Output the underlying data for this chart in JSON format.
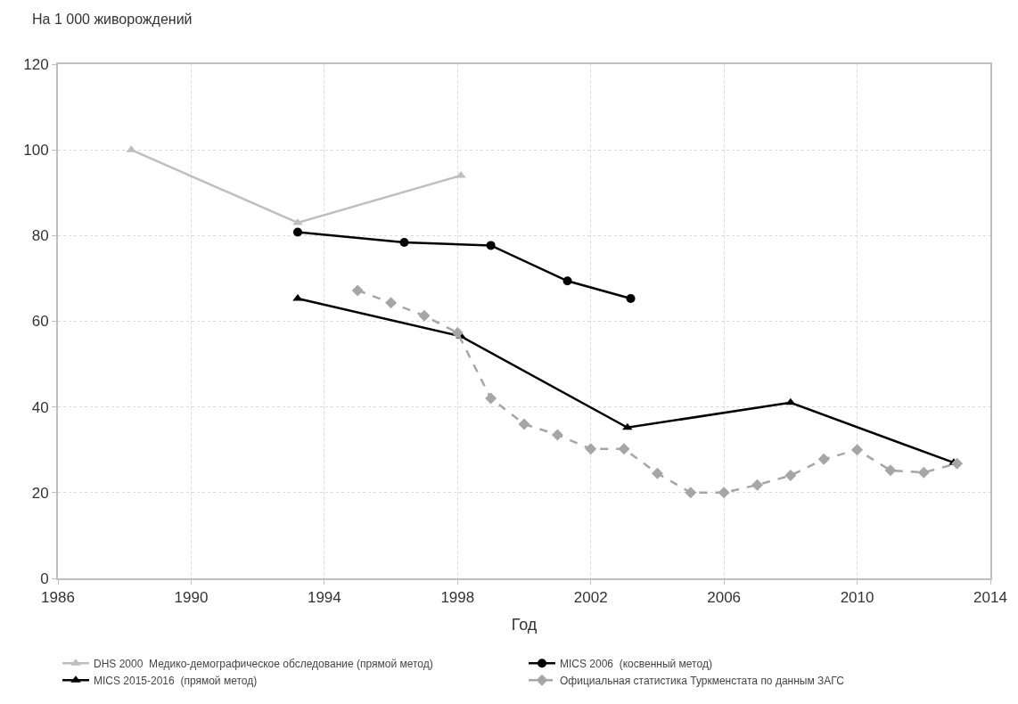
{
  "chart_data": {
    "type": "line",
    "ylabel": "На 1 000 живорождений",
    "xlabel": "Год",
    "xlim": [
      1986,
      2014
    ],
    "xticks": [
      1986,
      1990,
      1994,
      1998,
      2002,
      2006,
      2010,
      2014
    ],
    "ylim": [
      0,
      120
    ],
    "yticks": [
      0,
      20,
      40,
      60,
      80,
      100,
      120
    ],
    "grid": true,
    "legend": "bottom",
    "series": [
      {
        "name": "DHS 2000  Медико-демографическое обследование (прямой метод)",
        "color": "#bfbfbf",
        "marker": "triangle",
        "line_style": "solid",
        "x": [
          1988.2,
          1993.2,
          1998.1
        ],
        "values": [
          100,
          83,
          94
        ]
      },
      {
        "name": "MICS 2006  (косвенный метод)",
        "color": "#000000",
        "marker": "circle",
        "line_style": "solid",
        "x": [
          1993.2,
          1996.4,
          1999.0,
          2001.3,
          2003.2
        ],
        "values": [
          80.8,
          78.4,
          77.7,
          69.4,
          65.3
        ]
      },
      {
        "name": "MICS 2015-2016  (прямой метод)",
        "color": "#000000",
        "marker": "triangle",
        "line_style": "solid",
        "x": [
          1993.2,
          1998.1,
          2003.1,
          2008.0,
          2012.9
        ],
        "values": [
          65.3,
          56.5,
          35.2,
          41,
          27
        ]
      },
      {
        "name": "Официальная статистика Туркменстата по данным ЗАГС",
        "color": "#a6a6a6",
        "marker": "diamond",
        "line_style": "dashed",
        "x": [
          1995,
          1996,
          1997,
          1998,
          1999,
          2000,
          2001,
          2002,
          2003,
          2004,
          2005,
          2006,
          2007,
          2008,
          2009,
          2010,
          2011,
          2012,
          2013
        ],
        "values": [
          67.2,
          64.3,
          61.3,
          57.3,
          42,
          36,
          33.5,
          30.2,
          30.2,
          24.5,
          20,
          20,
          21.8,
          24,
          27.8,
          30,
          25.2,
          24.7,
          26.8
        ]
      }
    ]
  }
}
